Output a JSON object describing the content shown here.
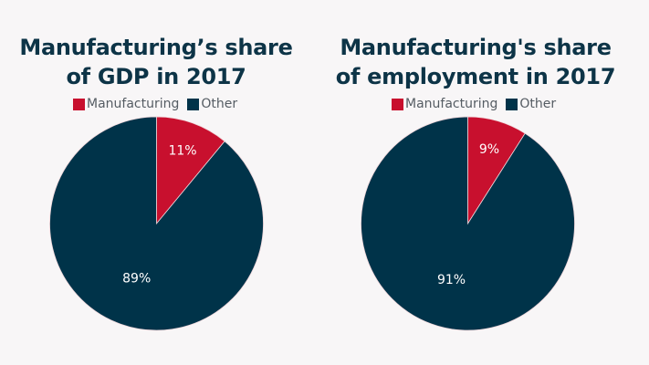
{
  "colors": {
    "manufacturing": "#c8102e",
    "other": "#003349",
    "background": "#f8f6f7",
    "title": "#0d3447"
  },
  "chart_data": [
    {
      "type": "pie",
      "title": "Manufacturing’s share of GDP in 2017",
      "title_lines": [
        "Manufacturing’s share",
        "of GDP in 2017"
      ],
      "legend": [
        "Manufacturing",
        "Other"
      ],
      "legend_position": "top",
      "slices": [
        {
          "label": "Manufacturing",
          "value": 11,
          "display": "11%"
        },
        {
          "label": "Other",
          "value": 89,
          "display": "89%"
        }
      ]
    },
    {
      "type": "pie",
      "title": "Manufacturing's share of employment in 2017",
      "title_lines": [
        "Manufacturing's share",
        "of employment in 2017"
      ],
      "legend": [
        "Manufacturing",
        "Other"
      ],
      "legend_position": "top",
      "slices": [
        {
          "label": "Manufacturing",
          "value": 9,
          "display": "9%"
        },
        {
          "label": "Other",
          "value": 91,
          "display": "91%"
        }
      ]
    }
  ]
}
